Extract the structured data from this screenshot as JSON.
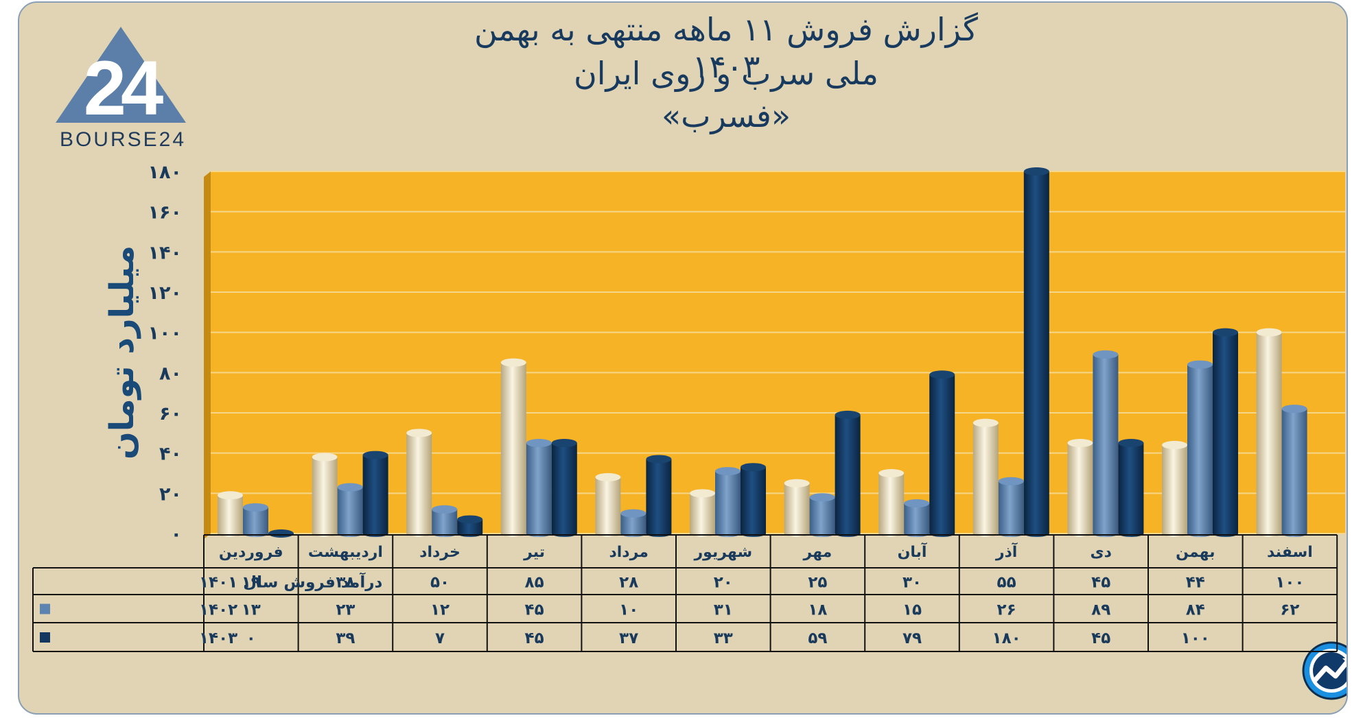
{
  "title_lines": [
    "گزارش  فروش ۱۱ ماهه منتهی به بهمن ۱۴۰۳",
    "ملی سرب و روی ایران",
    "«فسرب»"
  ],
  "logo": {
    "text": "BOURSE24",
    "mark": "24",
    "icon": "bourse24-triangle-logo"
  },
  "badge_icon": "trend-up-circle-icon",
  "colors": {
    "background": "#e0d4b4",
    "plot": "#f5b325",
    "series_1401": "#e8dcbc",
    "series_1402": "#5b84b1",
    "series_1403": "#13375f",
    "axis_text": "#1a3a5c"
  },
  "chart_data": {
    "type": "bar",
    "title": "گزارش  فروش ۱۱ ماهه منتهی به بهمن ۱۴۰۳ ملی سرب و روی ایران «فسرب»",
    "ylabel": "میلیارد تومان",
    "xlabel": "",
    "ylim": [
      0,
      180
    ],
    "yticks": [
      0,
      20,
      40,
      60,
      80,
      100,
      120,
      140,
      160,
      180
    ],
    "ytick_labels": [
      "۰",
      "۲۰",
      "۴۰",
      "۶۰",
      "۸۰",
      "۱۰۰",
      "۱۲۰",
      "۱۴۰",
      "۱۶۰",
      "۱۸۰"
    ],
    "grid": true,
    "legend": "table-left",
    "categories": [
      "فروردین",
      "اردیبهشت",
      "خرداد",
      "تیر",
      "مرداد",
      "شهریور",
      "مهر",
      "آبان",
      "آذر",
      "دی",
      "بهمن",
      "اسفند"
    ],
    "series": [
      {
        "name": "درآمد فروش سال ۱۴۰۱",
        "values": [
          19,
          38,
          50,
          85,
          28,
          20,
          25,
          30,
          55,
          45,
          44,
          100
        ],
        "labels": [
          "۱۹",
          "۳۸",
          "۵۰",
          "۸۵",
          "۲۸",
          "۲۰",
          "۲۵",
          "۳۰",
          "۵۵",
          "۴۵",
          "۴۴",
          "۱۰۰"
        ]
      },
      {
        "name": "۱۴۰۲",
        "values": [
          13,
          23,
          12,
          45,
          10,
          31,
          18,
          15,
          26,
          89,
          84,
          62
        ],
        "labels": [
          "۱۳",
          "۲۳",
          "۱۲",
          "۴۵",
          "۱۰",
          "۳۱",
          "۱۸",
          "۱۵",
          "۲۶",
          "۸۹",
          "۸۴",
          "۶۲"
        ]
      },
      {
        "name": "۱۴۰۳",
        "values": [
          0,
          39,
          7,
          45,
          37,
          33,
          59,
          79,
          180,
          45,
          100,
          null
        ],
        "labels": [
          "۰",
          "۳۹",
          "۷",
          "۴۵",
          "۳۷",
          "۳۳",
          "۵۹",
          "۷۹",
          "۱۸۰",
          "۴۵",
          "۱۰۰",
          ""
        ]
      }
    ]
  }
}
